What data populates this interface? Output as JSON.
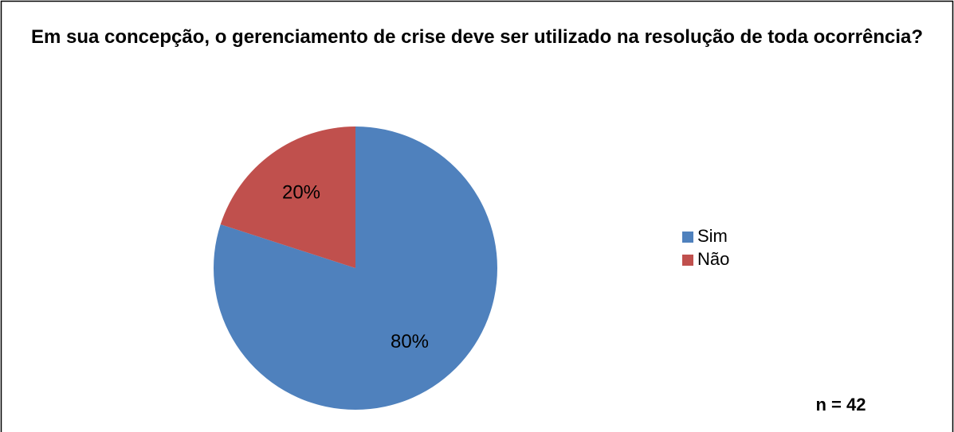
{
  "chart_data": {
    "type": "pie",
    "title": "Em sua concepção, o gerenciamento de crise deve ser utilizado na resolução de toda ocorrência?",
    "categories": [
      "Sim",
      "Não"
    ],
    "values": [
      80,
      20
    ],
    "value_labels": [
      "80%",
      "20%"
    ],
    "colors": [
      "#4f81bd",
      "#c0504d"
    ],
    "legend": "right",
    "annotation": "n = 42"
  }
}
